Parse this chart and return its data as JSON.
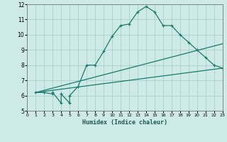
{
  "bg_color": "#ceeae6",
  "grid_color": "#aed4d0",
  "line_color": "#1a7a6e",
  "xlabel": "Humidex (Indice chaleur)",
  "xlim": [
    0,
    23
  ],
  "ylim": [
    5,
    12
  ],
  "yticks": [
    5,
    6,
    7,
    8,
    9,
    10,
    11,
    12
  ],
  "xticks": [
    0,
    1,
    2,
    3,
    4,
    5,
    6,
    7,
    8,
    9,
    10,
    11,
    12,
    13,
    14,
    15,
    16,
    17,
    18,
    19,
    20,
    21,
    22,
    23
  ],
  "line1_x": [
    1,
    2,
    3,
    3,
    4,
    4,
    5,
    5,
    6,
    7,
    8,
    9,
    10,
    11,
    12,
    13,
    14,
    15,
    16,
    17,
    18,
    19,
    20,
    21,
    22,
    23
  ],
  "line1_y": [
    6.2,
    6.2,
    6.1,
    6.2,
    5.5,
    6.1,
    5.5,
    6.0,
    6.6,
    8.0,
    8.0,
    8.9,
    9.9,
    10.6,
    10.7,
    11.5,
    11.85,
    11.5,
    10.6,
    10.6,
    10.0,
    9.5,
    9.0,
    8.5,
    8.0,
    7.8
  ],
  "line2_x": [
    1,
    23
  ],
  "line2_y": [
    6.2,
    9.4
  ],
  "line3_x": [
    1,
    23
  ],
  "line3_y": [
    6.2,
    7.8
  ]
}
